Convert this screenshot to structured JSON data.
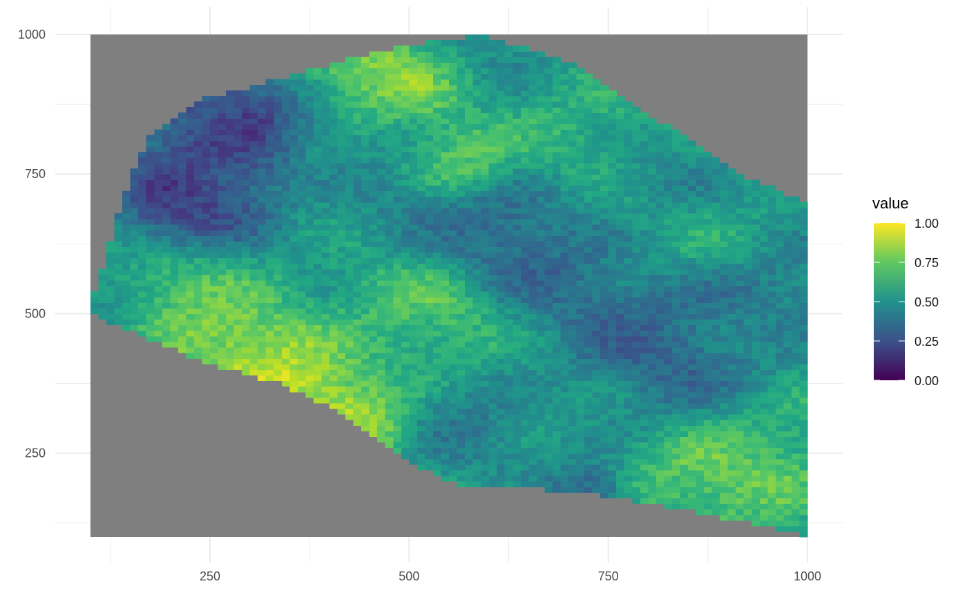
{
  "chart_data": {
    "type": "heatmap",
    "title": "",
    "xlabel": "",
    "ylabel": "",
    "x_ticks": [
      250,
      500,
      750,
      1000
    ],
    "y_ticks": [
      250,
      500,
      750,
      1000
    ],
    "xlim": [
      100,
      1000
    ],
    "ylim": [
      100,
      1000
    ],
    "grid": true,
    "panel_background": "#7f7f7f",
    "colormap": "viridis",
    "colors": {
      "low": "#440154",
      "q25": "#3b528b",
      "mid": "#21908d",
      "q75": "#5dc863",
      "high": "#fde725"
    },
    "legend": {
      "title": "value",
      "position": "right",
      "breaks": [
        "1.00",
        "0.75",
        "0.50",
        "0.25",
        "0.00"
      ],
      "range": [
        0,
        1
      ]
    },
    "field": {
      "cell_size": 10,
      "value_range": [
        0,
        1
      ],
      "domain_polygon": [
        [
          100,
          520
        ],
        [
          100,
          500
        ],
        [
          240,
          415
        ],
        [
          340,
          375
        ],
        [
          420,
          320
        ],
        [
          480,
          260
        ],
        [
          500,
          230
        ],
        [
          560,
          195
        ],
        [
          720,
          180
        ],
        [
          820,
          155
        ],
        [
          930,
          125
        ],
        [
          1000,
          100
        ],
        [
          1000,
          700
        ],
        [
          930,
          740
        ],
        [
          850,
          815
        ],
        [
          770,
          880
        ],
        [
          720,
          940
        ],
        [
          670,
          965
        ],
        [
          590,
          1000
        ],
        [
          460,
          970
        ],
        [
          350,
          925
        ],
        [
          230,
          880
        ],
        [
          170,
          810
        ],
        [
          140,
          700
        ],
        [
          120,
          600
        ]
      ],
      "hotspots": [
        {
          "x": 280,
          "y": 815,
          "r": 90,
          "v": 0.05
        },
        {
          "x": 220,
          "y": 690,
          "r": 70,
          "v": 0.18
        },
        {
          "x": 330,
          "y": 350,
          "r": 100,
          "v": 0.98
        },
        {
          "x": 410,
          "y": 300,
          "r": 60,
          "v": 0.9
        },
        {
          "x": 450,
          "y": 920,
          "r": 80,
          "v": 0.85
        },
        {
          "x": 280,
          "y": 440,
          "r": 90,
          "v": 0.85
        },
        {
          "x": 560,
          "y": 770,
          "r": 50,
          "v": 0.8
        },
        {
          "x": 500,
          "y": 500,
          "r": 90,
          "v": 0.78
        },
        {
          "x": 250,
          "y": 550,
          "r": 70,
          "v": 0.72
        },
        {
          "x": 940,
          "y": 250,
          "r": 90,
          "v": 0.82
        },
        {
          "x": 840,
          "y": 190,
          "r": 60,
          "v": 0.75
        },
        {
          "x": 720,
          "y": 850,
          "r": 70,
          "v": 0.72
        },
        {
          "x": 900,
          "y": 630,
          "r": 60,
          "v": 0.68
        },
        {
          "x": 650,
          "y": 280,
          "r": 80,
          "v": 0.6
        },
        {
          "x": 800,
          "y": 430,
          "r": 120,
          "v": 0.33
        },
        {
          "x": 630,
          "y": 620,
          "r": 100,
          "v": 0.33
        },
        {
          "x": 580,
          "y": 270,
          "r": 60,
          "v": 0.34
        },
        {
          "x": 900,
          "y": 530,
          "r": 70,
          "v": 0.3
        },
        {
          "x": 720,
          "y": 180,
          "r": 40,
          "v": 0.28
        },
        {
          "x": 470,
          "y": 650,
          "r": 60,
          "v": 0.42
        },
        {
          "x": 400,
          "y": 800,
          "r": 60,
          "v": 0.55
        },
        {
          "x": 960,
          "y": 430,
          "r": 60,
          "v": 0.45
        }
      ]
    }
  }
}
